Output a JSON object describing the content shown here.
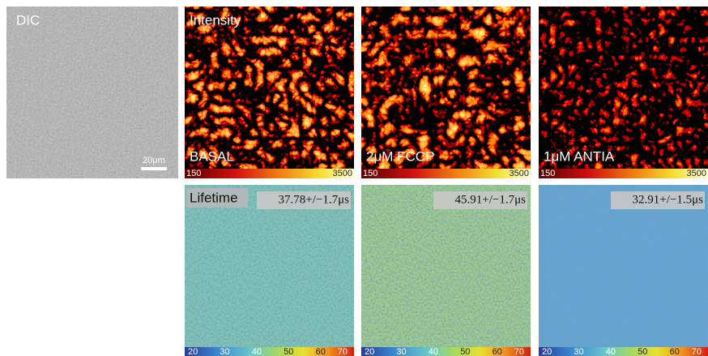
{
  "dic": {
    "label": "DIC",
    "scale_bar": "20μm"
  },
  "intensity": {
    "label": "Intensity",
    "panels": [
      {
        "condition": "BASAL"
      },
      {
        "condition": "2μM FCCP"
      },
      {
        "condition": "1μM ANTIA"
      }
    ],
    "colorbar": {
      "min": 150,
      "max": 3500
    }
  },
  "lifetime": {
    "label": "Lifetime",
    "panels": [
      {
        "value": "37.78+/−1.7μs"
      },
      {
        "value": "45.91+/−1.7μs"
      },
      {
        "value": "32.91+/−1.5μs"
      }
    ],
    "colorbar": {
      "ticks": [
        20,
        30,
        40,
        50,
        60,
        70
      ]
    }
  }
}
